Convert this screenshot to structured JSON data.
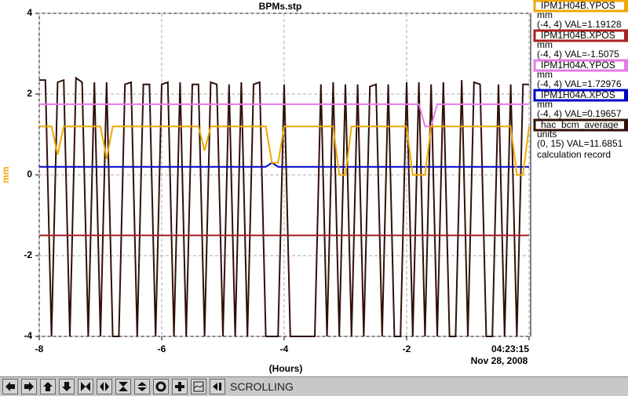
{
  "chart_data": {
    "type": "line",
    "title": "BPMs.stp",
    "xlabel": "(Hours)",
    "ylabel": "mm",
    "x_date_label": "Nov 28, 2008",
    "x": [
      -8,
      -7.9,
      -7.8,
      -7.7,
      -7.6,
      -7.5,
      -7.4,
      -7.3,
      -7.2,
      -7.1,
      -7,
      -6.9,
      -6.8,
      -6.7,
      -6.6,
      -6.5,
      -6.4,
      -6.3,
      -6.2,
      -6.1,
      -6,
      -5.9,
      -5.8,
      -5.7,
      -5.6,
      -5.5,
      -5.4,
      -5.3,
      -5.2,
      -5.1,
      -5,
      -4.9,
      -4.8,
      -4.7,
      -4.6,
      -4.5,
      -4.4,
      -4.3,
      -4.2,
      -4.1,
      -4,
      -3.9,
      -3.8,
      -3.7,
      -3.6,
      -3.5,
      -3.4,
      -3.3,
      -3.2,
      -3.1,
      -3,
      -2.9,
      -2.8,
      -2.7,
      -2.6,
      -2.5,
      -2.4,
      -2.3,
      -2.2,
      -2.1,
      -2,
      -1.9,
      -1.8,
      -1.7,
      -1.6,
      -1.5,
      -1.4,
      -1.3,
      -1.2,
      -1.1,
      -1,
      -0.9,
      -0.8,
      -0.7,
      -0.6,
      -0.5,
      -0.4,
      -0.3,
      -0.2,
      -0.1,
      0
    ],
    "xlim": [
      -8,
      0
    ],
    "xticks": [
      -8,
      -6,
      -4,
      -2,
      {
        "value": 0,
        "label": "04:23:15"
      }
    ],
    "ylim": [
      -4,
      4
    ],
    "yticks": [
      -4,
      -2,
      0,
      2,
      4
    ],
    "y2lim": [
      0,
      15
    ],
    "grid": true,
    "series": [
      {
        "name": "IPM1H04B.YPOS",
        "unit": "mm",
        "range_label": "(-4, 4) VAL=1.19128",
        "color": "#f0a800",
        "values": [
          1.2,
          1.2,
          1.2,
          0.5,
          1.2,
          1.2,
          1.2,
          1.2,
          1.2,
          1.2,
          1.2,
          0.4,
          1.2,
          1.2,
          1.2,
          1.2,
          1.2,
          1.2,
          1.2,
          1.2,
          1.2,
          1.2,
          1.2,
          1.2,
          1.2,
          1.2,
          1.2,
          0.6,
          1.2,
          1.2,
          1.2,
          1.2,
          1.2,
          1.2,
          1.2,
          1.2,
          1.2,
          1.2,
          0.3,
          0.3,
          1.2,
          1.2,
          1.2,
          1.2,
          1.2,
          1.2,
          1.2,
          1.2,
          1.2,
          0,
          0,
          1.2,
          1.2,
          1.2,
          1.2,
          1.2,
          1.2,
          1.2,
          1.2,
          1.2,
          1.2,
          0,
          0,
          0,
          1.2,
          1.2,
          1.2,
          1.2,
          1.2,
          1.2,
          1.2,
          1.2,
          1.2,
          1.2,
          1.2,
          1.2,
          1.2,
          1.2,
          0,
          0,
          1.2
        ]
      },
      {
        "name": "IPM1H04B.XPOS",
        "unit": "mm",
        "range_label": "(-4, 4) VAL=-1.5075",
        "color": "#a82020",
        "values": [
          -1.5,
          -1.5,
          -1.5,
          -1.5,
          -1.5,
          -1.5,
          -1.5,
          -1.5,
          -1.5,
          -1.5,
          -1.5,
          -1.5,
          -1.5,
          -1.5,
          -1.5,
          -1.5,
          -1.5,
          -1.5,
          -1.5,
          -1.5,
          -1.5,
          -1.5,
          -1.5,
          -1.5,
          -1.5,
          -1.5,
          -1.5,
          -1.5,
          -1.5,
          -1.5,
          -1.5,
          -1.5,
          -1.5,
          -1.5,
          -1.5,
          -1.5,
          -1.5,
          -1.5,
          -1.5,
          -1.5,
          -1.5,
          -1.5,
          -1.5,
          -1.5,
          -1.5,
          -1.5,
          -1.5,
          -1.5,
          -1.5,
          -1.5,
          -1.5,
          -1.5,
          -1.5,
          -1.5,
          -1.5,
          -1.5,
          -1.5,
          -1.5,
          -1.5,
          -1.5,
          -1.5,
          -1.5,
          -1.5,
          -1.5,
          -1.5,
          -1.5,
          -1.5,
          -1.5,
          -1.5,
          -1.5,
          -1.5,
          -1.5,
          -1.5,
          -1.5,
          -1.5,
          -1.5,
          -1.5,
          -1.5,
          -1.5,
          -1.5,
          -1.5
        ]
      },
      {
        "name": "IPM1H04A.YPOS",
        "unit": "mm",
        "range_label": "(-4, 4) VAL=1.72976",
        "color": "#e878e8",
        "values": [
          1.75,
          1.75,
          1.75,
          1.75,
          1.75,
          1.75,
          1.75,
          1.75,
          1.75,
          1.75,
          1.75,
          1.75,
          1.75,
          1.75,
          1.75,
          1.75,
          1.75,
          1.75,
          1.75,
          1.75,
          1.75,
          1.75,
          1.75,
          1.75,
          1.75,
          1.75,
          1.75,
          1.75,
          1.75,
          1.75,
          1.75,
          1.75,
          1.75,
          1.75,
          1.75,
          1.75,
          1.75,
          1.75,
          1.75,
          1.75,
          1.75,
          1.75,
          1.75,
          1.75,
          1.75,
          1.75,
          1.75,
          1.75,
          1.75,
          1.75,
          1.75,
          1.75,
          1.75,
          1.75,
          1.75,
          1.75,
          1.75,
          1.75,
          1.75,
          1.75,
          1.75,
          1.75,
          1.75,
          1.2,
          1.2,
          1.75,
          1.75,
          1.75,
          1.75,
          1.75,
          1.75,
          1.75,
          1.75,
          1.75,
          1.75,
          1.75,
          1.75,
          1.75,
          1.75,
          1.75,
          1.75
        ]
      },
      {
        "name": "IPM1H04A.XPOS",
        "unit": "mm",
        "range_label": "(-4, 4) VAL=0.19657",
        "color": "#0000c8",
        "values": [
          0.2,
          0.2,
          0.2,
          0.2,
          0.2,
          0.2,
          0.2,
          0.2,
          0.2,
          0.2,
          0.2,
          0.2,
          0.2,
          0.2,
          0.2,
          0.2,
          0.2,
          0.2,
          0.2,
          0.2,
          0.2,
          0.2,
          0.2,
          0.2,
          0.2,
          0.2,
          0.2,
          0.2,
          0.2,
          0.2,
          0.2,
          0.2,
          0.2,
          0.2,
          0.2,
          0.2,
          0.2,
          0.2,
          0.3,
          0.2,
          0.2,
          0.2,
          0.2,
          0.2,
          0.2,
          0.2,
          0.2,
          0.2,
          0.2,
          0.2,
          0.2,
          0.2,
          0.2,
          0.2,
          0.2,
          0.2,
          0.2,
          0.2,
          0.2,
          0.2,
          0.2,
          0.2,
          0.2,
          0.2,
          0.2,
          0.2,
          0.2,
          0.2,
          0.2,
          0.2,
          0.2,
          0.2,
          0.2,
          0.2,
          0.2,
          0.2,
          0.2,
          0.2,
          0.2,
          0.2,
          0.2
        ]
      },
      {
        "name": "hac_bcm_average",
        "unit": "units",
        "range_label": "(0, 15) VAL=11.6851",
        "description": "calculation record",
        "color": "#301008",
        "axis": "y2",
        "values": [
          11.9,
          11.9,
          0,
          11.8,
          11.9,
          0,
          12,
          11.8,
          0,
          11.8,
          0,
          11.8,
          0,
          0,
          11.7,
          11.8,
          0,
          11.7,
          11.7,
          0,
          11.7,
          11.8,
          0,
          11.8,
          0,
          11.7,
          11.7,
          0,
          11.8,
          11.7,
          0,
          11.7,
          0,
          11.8,
          0,
          11.7,
          11.8,
          0,
          0,
          0,
          11.7,
          0,
          0,
          0,
          0,
          0,
          11.7,
          0,
          11.8,
          0,
          11.7,
          0,
          11.7,
          0,
          11.6,
          11.7,
          0,
          11.7,
          0,
          0,
          11.8,
          0,
          11.8,
          0,
          11.7,
          0,
          11.8,
          0,
          0,
          11.9,
          0,
          11.8,
          11.7,
          0,
          0,
          11.7,
          0,
          11.7,
          0,
          11.7,
          11.7
        ]
      }
    ]
  },
  "toolbar": {
    "mode": "SCROLLING"
  }
}
